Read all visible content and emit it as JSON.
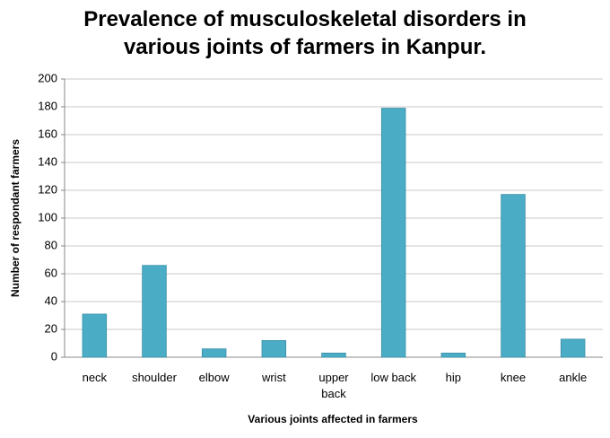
{
  "chart_data": {
    "type": "bar",
    "title": "Prevalence of musculoskeletal disorders in various joints of farmers in Kanpur.",
    "x_label": "Various joints affected in farmers",
    "y_label": "Number of respondant farmers",
    "categories": [
      "neck",
      "shoulder",
      "elbow",
      "wrist",
      "upper back",
      "low back",
      "hip",
      "knee",
      "ankle"
    ],
    "values": [
      31,
      66,
      6,
      12,
      3,
      179,
      3,
      117,
      13
    ],
    "color": "#4bacc6",
    "ylim": [
      0,
      200
    ],
    "yticks": [
      0,
      20,
      40,
      60,
      80,
      100,
      120,
      140,
      160,
      180,
      200
    ],
    "grid": true
  }
}
